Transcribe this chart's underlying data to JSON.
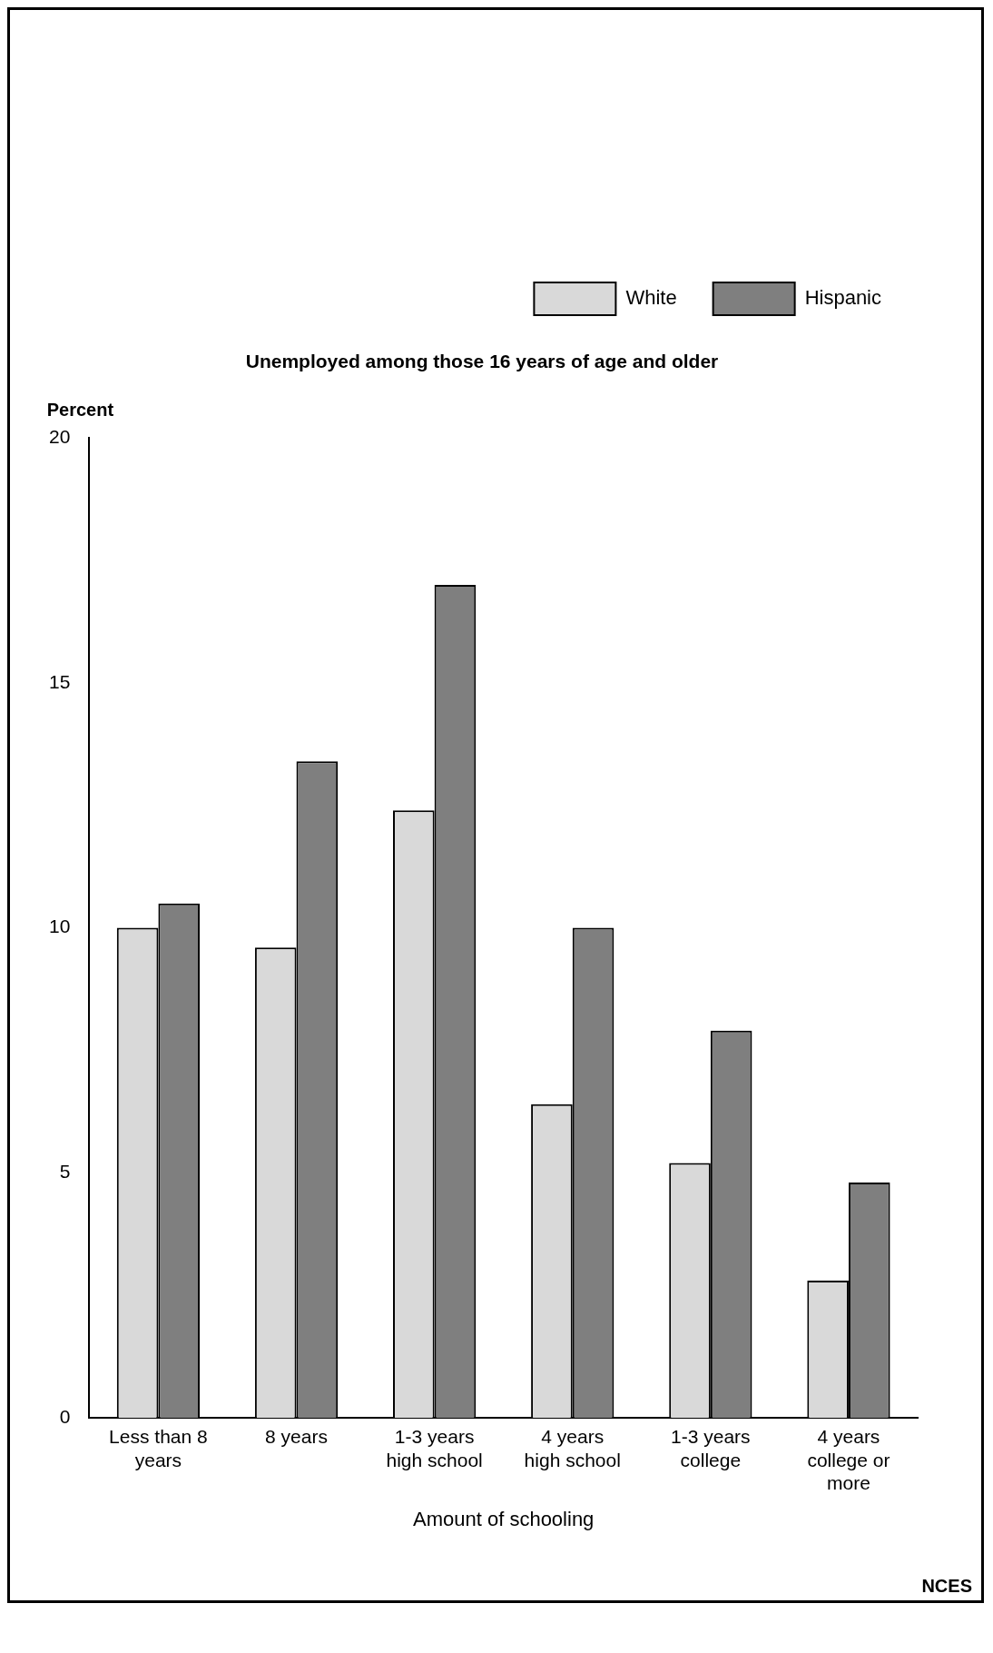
{
  "chart_data": {
    "type": "bar",
    "title": "Unemployed among those 16 years of age and older",
    "xlabel": "Amount of schooling",
    "ylabel": "Percent",
    "categories": [
      "Less than 8 years",
      "8 years",
      "1-3 years high school",
      "4 years high school",
      "1-3 years college",
      "4 years college or more"
    ],
    "series": [
      {
        "name": "White",
        "color": "#d9d9d9",
        "values": [
          10.0,
          9.6,
          12.4,
          6.4,
          5.2,
          2.8
        ]
      },
      {
        "name": "Hispanic",
        "color": "#7f7f7f",
        "values": [
          10.5,
          13.4,
          17.0,
          10.0,
          7.9,
          4.8
        ]
      }
    ],
    "ylim": [
      0,
      20
    ],
    "yticks": [
      0,
      5,
      10,
      15,
      20
    ],
    "grid": false,
    "legend": "top",
    "annotations": [
      "NCES"
    ]
  }
}
